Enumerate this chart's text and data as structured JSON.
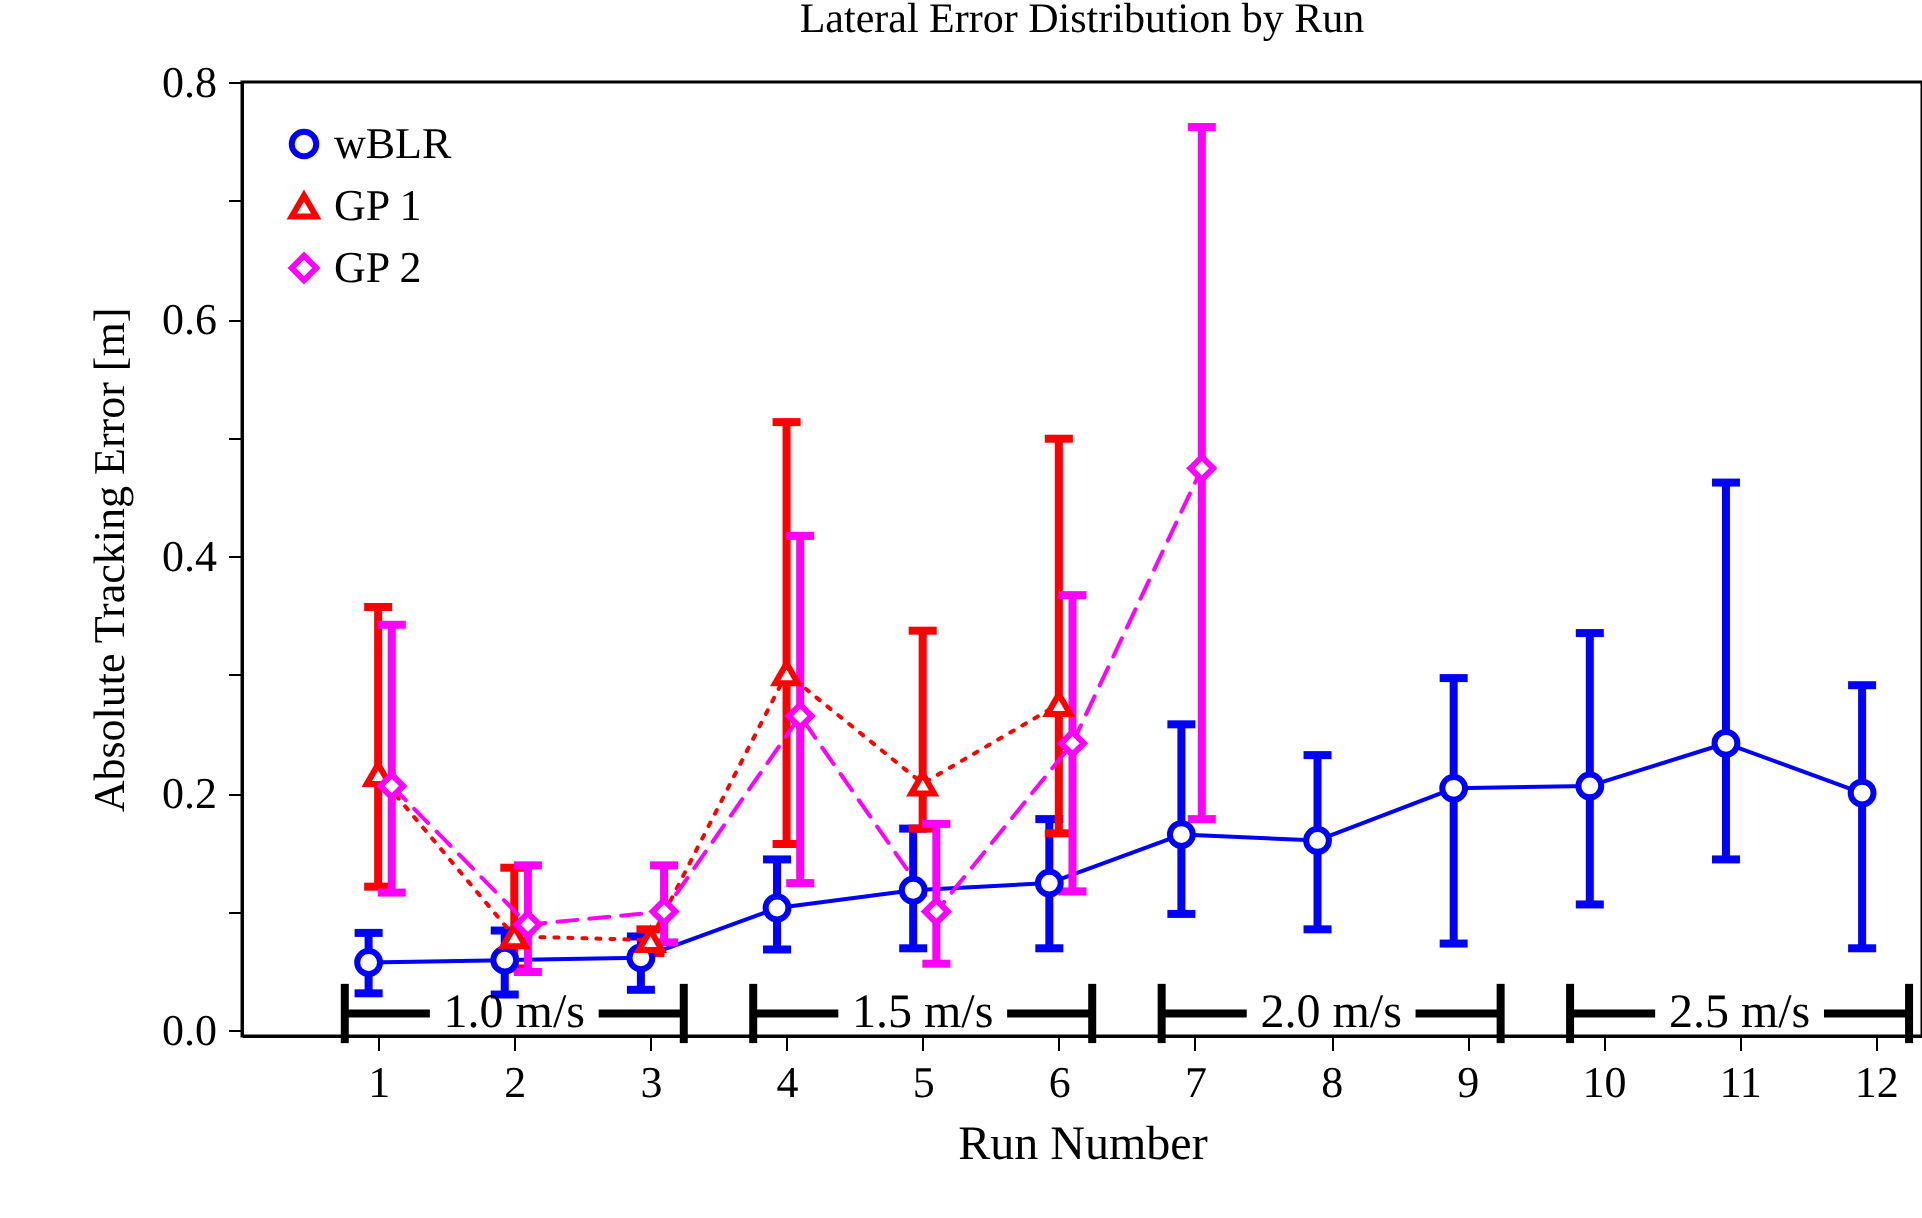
{
  "chart_data": {
    "type": "line",
    "title": "Lateral Error Distribution by Run",
    "xlabel": "Run Number",
    "ylabel": "Absolute Tracking Error [m]",
    "xlim": [
      0,
      12.34
    ],
    "xticks": [
      1,
      2,
      3,
      4,
      5,
      6,
      7,
      8,
      9,
      10,
      11,
      12
    ],
    "ylim": [
      -0.005,
      0.8
    ],
    "yticks": [
      {
        "value": 0,
        "label": "0.0"
      },
      {
        "value": 0.1,
        "label": null
      },
      0.2,
      {
        "value": 0.3,
        "label": null
      },
      0.4,
      {
        "value": 0.5,
        "label": null
      },
      0.6,
      {
        "value": 0.7,
        "label": null
      },
      0.8
    ],
    "grid": false,
    "legend": "top left",
    "series": [
      {
        "name": "wBLR",
        "color": "#0000ff",
        "marker": "circle",
        "line_style": "solid",
        "x": [
          0.93,
          1.93,
          2.93,
          3.93,
          4.93,
          5.93,
          6.9,
          7.9,
          8.9,
          9.9,
          10.9,
          11.9
        ],
        "values": [
          0.057,
          0.059,
          0.061,
          0.103,
          0.118,
          0.124,
          0.165,
          0.16,
          0.204,
          0.206,
          0.242,
          0.2
        ],
        "errors": [
          [
            0.031,
            0.082
          ],
          [
            0.03,
            0.084
          ],
          [
            0.034,
            0.079
          ],
          [
            0.068,
            0.144
          ],
          [
            0.069,
            0.17
          ],
          [
            0.069,
            0.178
          ],
          [
            0.098,
            0.258
          ],
          [
            0.085,
            0.232
          ],
          [
            0.073,
            0.297
          ],
          [
            0.106,
            0.335
          ],
          [
            0.144,
            0.462
          ],
          [
            0.069,
            0.291
          ]
        ]
      },
      {
        "name": "GP 1",
        "color": "#ff0000",
        "marker": "triangle",
        "line_style": "dotted",
        "x": [
          1,
          2,
          3,
          4,
          5,
          6
        ],
        "values": [
          0.216,
          0.079,
          0.076,
          0.301,
          0.208,
          0.275
        ],
        "errors": [
          [
            0.121,
            0.357
          ],
          [
            0.052,
            0.137
          ],
          [
            0.065,
            0.085
          ],
          [
            0.157,
            0.513
          ],
          [
            0.17,
            0.337
          ],
          [
            0.166,
            0.499
          ]
        ]
      },
      {
        "name": "GP 2",
        "color": "#ff00ff",
        "marker": "diamond",
        "line_style": "dashed",
        "x": [
          1.1,
          2.1,
          3.1,
          4.1,
          5.1,
          6.1,
          7.05
        ],
        "values": [
          0.206,
          0.089,
          0.1,
          0.265,
          0.1,
          0.242,
          0.474
        ],
        "errors": [
          [
            0.116,
            0.342
          ],
          [
            0.049,
            0.139
          ],
          [
            0.074,
            0.139
          ],
          [
            0.124,
            0.417
          ],
          [
            0.056,
            0.174
          ],
          [
            0.117,
            0.367
          ],
          [
            0.178,
            0.762
          ]
        ]
      }
    ],
    "annotations": [
      "1.0 m/s",
      "1.5 m/s",
      "2.0 m/s",
      "2.5 m/s"
    ]
  }
}
